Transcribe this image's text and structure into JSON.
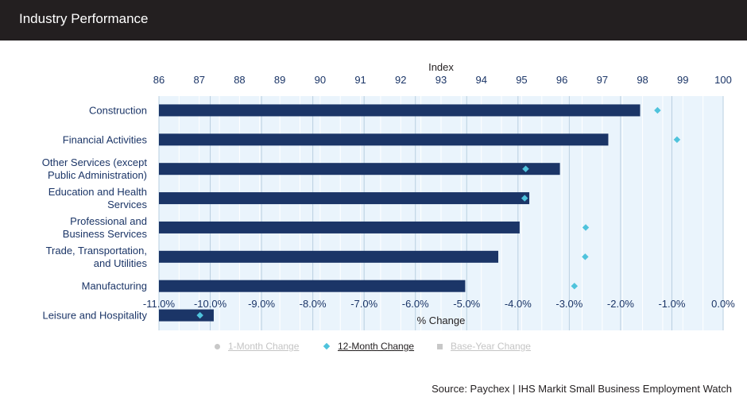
{
  "header": {
    "title": "Industry Performance"
  },
  "chart_data": {
    "type": "bar",
    "orientation": "horizontal",
    "categories": [
      "Construction",
      "Financial Activities",
      "Other Services (except Public Administration)",
      "Education and Health Services",
      "Professional and Business Services",
      "Trade, Transportation, and Utilities",
      "Manufacturing",
      "Leisure and Hospitality"
    ],
    "series": [
      {
        "name": "Index",
        "axis": "top",
        "values": [
          97.94,
          97.15,
          95.95,
          95.19,
          94.95,
          94.42,
          93.6,
          87.36
        ]
      },
      {
        "name": "12-Month Change",
        "axis": "bottom",
        "marker": "diamond",
        "values": [
          -1.28,
          -0.9,
          -3.85,
          -3.87,
          -2.68,
          -2.69,
          -2.9,
          -10.2
        ]
      }
    ],
    "top_axis": {
      "label": "Index",
      "min": 86,
      "max": 100,
      "ticks": [
        "86",
        "87",
        "88",
        "89",
        "90",
        "91",
        "92",
        "93",
        "94",
        "95",
        "96",
        "97",
        "98",
        "99",
        "100"
      ]
    },
    "bottom_axis": {
      "label": "% Change",
      "min": -11,
      "max": 0,
      "ticks": [
        "-11.0%",
        "-10.0%",
        "-9.0%",
        "-8.0%",
        "-7.0%",
        "-6.0%",
        "-5.0%",
        "-4.0%",
        "-3.0%",
        "-2.0%",
        "-1.0%",
        "0.0%"
      ]
    },
    "colors": {
      "bar": "#1b3567",
      "marker": "#4fc3dc",
      "plot_bg": "#eaf4fc",
      "grid": "#ffffff",
      "axis_text": "#1b3567"
    },
    "grid": true,
    "legend": {
      "placement": "bottom",
      "items": [
        {
          "label": "1-Month Change",
          "active": false,
          "marker": "circle"
        },
        {
          "label": "12-Month Change",
          "active": true,
          "marker": "diamond"
        },
        {
          "label": "Base-Year Change",
          "active": false,
          "marker": "square"
        }
      ]
    }
  },
  "source": "Source: Paychex | IHS Markit Small Business Employment Watch"
}
